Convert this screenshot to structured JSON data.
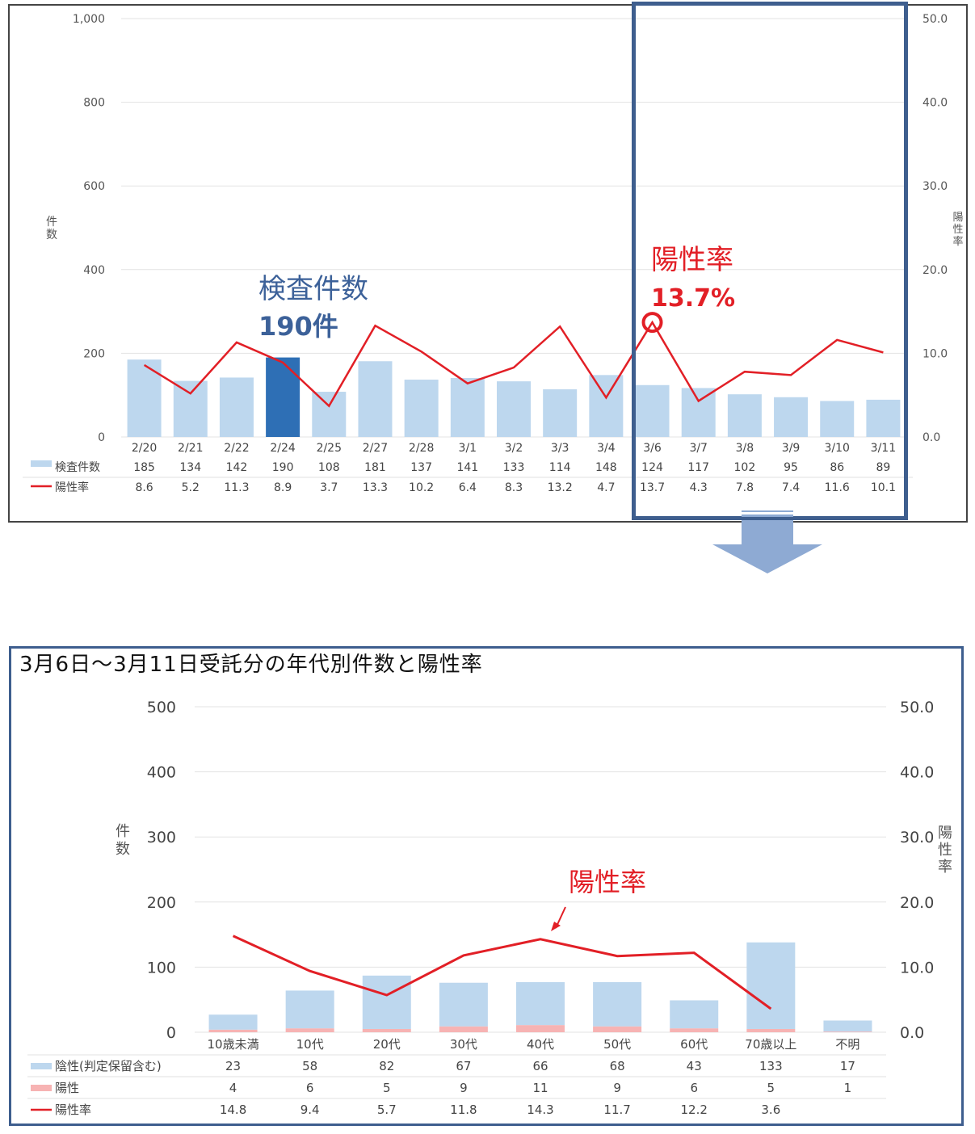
{
  "chart_data": [
    {
      "type": "bar",
      "categories": [
        "2/20",
        "2/21",
        "2/22",
        "2/24",
        "2/25",
        "2/27",
        "2/28",
        "3/1",
        "3/2",
        "3/3",
        "3/4",
        "3/6",
        "3/7",
        "3/8",
        "3/9",
        "3/10",
        "3/11"
      ],
      "series": [
        {
          "name": "検査件数",
          "values": [
            185,
            134,
            142,
            190,
            108,
            181,
            137,
            141,
            133,
            114,
            148,
            124,
            117,
            102,
            95,
            86,
            89
          ],
          "axis": "left",
          "color": "#bdd7ee"
        },
        {
          "name": "陽性率",
          "values": [
            8.6,
            5.2,
            11.3,
            8.9,
            3.7,
            13.3,
            10.2,
            6.4,
            8.3,
            13.2,
            4.7,
            13.7,
            4.3,
            7.8,
            7.4,
            11.6,
            10.1
          ],
          "axis": "right",
          "type": "line",
          "color": "#e21f26"
        }
      ],
      "highlight_bar": "2/24",
      "highlight_color": "#2e6fb5",
      "ylabel": "件数",
      "y2label": "陽性率",
      "ylim": [
        0,
        1000
      ],
      "y2lim": [
        0,
        50
      ],
      "yticks": [
        "0",
        "200",
        "400",
        "600",
        "800",
        "1,000"
      ],
      "y2ticks": [
        "0.0",
        "10.0",
        "20.0",
        "30.0",
        "40.0",
        "50.0"
      ],
      "annotations": {
        "count_title": "検査件数",
        "count_value": "190件",
        "rate_title": "陽性率",
        "rate_value": "13.7%"
      },
      "grid": true,
      "legend": "table-below"
    },
    {
      "type": "bar",
      "title": "3月6日～3月11日受託分の年代別件数と陽性率",
      "categories": [
        "10歳未満",
        "10代",
        "20代",
        "30代",
        "40代",
        "50代",
        "60代",
        "70歳以上",
        "不明"
      ],
      "series": [
        {
          "name": "陰性(判定保留含む)",
          "values": [
            23,
            58,
            82,
            67,
            66,
            68,
            43,
            133,
            17
          ],
          "axis": "left",
          "stacked": true,
          "color": "#bdd7ee"
        },
        {
          "name": "陽性",
          "values": [
            4,
            6,
            5,
            9,
            11,
            9,
            6,
            5,
            1
          ],
          "axis": "left",
          "stacked": true,
          "color": "#f7b3b3"
        },
        {
          "name": "陽性率",
          "values": [
            14.8,
            9.4,
            5.7,
            11.8,
            14.3,
            11.7,
            12.2,
            3.6,
            null
          ],
          "axis": "right",
          "type": "line",
          "color": "#e21f26"
        }
      ],
      "ylabel": "件数",
      "y2label": "陽性率",
      "ylim": [
        0,
        500
      ],
      "y2lim": [
        0,
        50
      ],
      "yticks": [
        "0",
        "100",
        "200",
        "300",
        "400",
        "500"
      ],
      "y2ticks": [
        "0.0",
        "10.0",
        "20.0",
        "30.0",
        "40.0",
        "50.0"
      ],
      "annotations": {
        "rate_label": "陽性率"
      },
      "grid": true,
      "legend": "table-below"
    }
  ]
}
